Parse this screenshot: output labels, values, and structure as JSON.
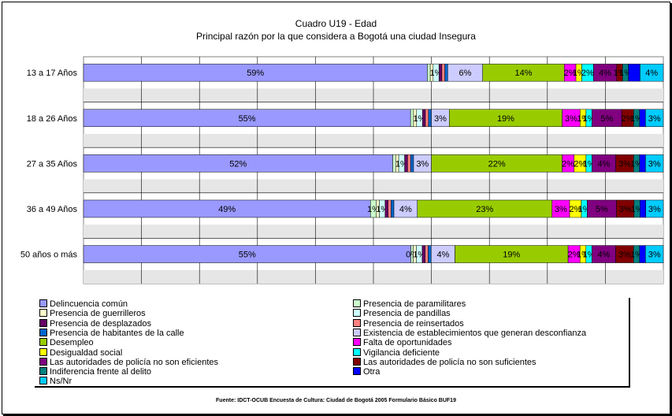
{
  "chart_data": {
    "type": "bar",
    "orientation": "horizontal",
    "stacked": "percent",
    "title": "Cuadro U19 - Edad",
    "subtitle": "Principal razón por la que considera a Bogotá una ciudad Insegura",
    "categories": [
      "13 a 17 Años",
      "18 a 26 Años",
      "27 a 35 Años",
      "36 a 49 Años",
      "50 años o más"
    ],
    "series": [
      {
        "name": "Delincuencia común",
        "color": "#9999ff",
        "values": [
          59,
          55,
          52,
          49,
          55
        ],
        "labels": [
          "59%",
          "55%",
          "52%",
          "49%",
          "55%"
        ]
      },
      {
        "name": "Presencia de paramilitares",
        "color": "#ccffcc",
        "values": [
          0.5,
          0.5,
          0.5,
          1,
          0.4
        ],
        "labels": [
          "",
          "",
          "",
          "1%",
          "0%"
        ]
      },
      {
        "name": "Presencia de guerrilleros",
        "color": "#ffffcc",
        "values": [
          0.5,
          0.5,
          0.5,
          0.5,
          0.5
        ],
        "labels": [
          "",
          "",
          "",
          "",
          ""
        ]
      },
      {
        "name": "Presencia de pandillas",
        "color": "#ccffff",
        "values": [
          1,
          1,
          1,
          1,
          1
        ],
        "labels": [
          "1%",
          "1%",
          "1%",
          "1%",
          "1%"
        ]
      },
      {
        "name": "Presencia de desplazados",
        "color": "#660066",
        "values": [
          0.5,
          0.5,
          0.5,
          0.5,
          0.5
        ],
        "labels": [
          "",
          "",
          "",
          "",
          ""
        ]
      },
      {
        "name": "Presencia de reinsertados",
        "color": "#ff8080",
        "values": [
          0.5,
          0.5,
          0.5,
          0.5,
          0.5
        ],
        "labels": [
          "",
          "",
          "",
          "",
          ""
        ]
      },
      {
        "name": "Presencia de habitantes de la calle",
        "color": "#0066cc",
        "values": [
          0.5,
          0.5,
          0.5,
          0.5,
          0.5
        ],
        "labels": [
          "",
          "",
          "",
          "",
          ""
        ]
      },
      {
        "name": "Existencia de establecimientos que generan desconfianza",
        "color": "#ccccff",
        "values": [
          6,
          3,
          3,
          4,
          4
        ],
        "labels": [
          "6%",
          "3%",
          "3%",
          "4%",
          "4%"
        ]
      },
      {
        "name": "Desempleo",
        "color": "#99cc00",
        "values": [
          14,
          19,
          22,
          23,
          19
        ],
        "labels": [
          "14%",
          "19%",
          "22%",
          "23%",
          "19%"
        ]
      },
      {
        "name": "Falta de oportunidades",
        "color": "#ff00ff",
        "values": [
          2,
          3,
          2,
          3,
          2
        ],
        "labels": [
          "2%",
          "3%",
          "2%",
          "3%",
          "2%"
        ]
      },
      {
        "name": "Desigualdad social",
        "color": "#ffff00",
        "values": [
          1,
          1,
          2,
          2,
          1
        ],
        "labels": [
          "1%",
          "1%",
          "2%",
          "2%",
          "1%"
        ]
      },
      {
        "name": "Vigilancia deficiente",
        "color": "#00ffff",
        "values": [
          2,
          1,
          1,
          1,
          1
        ],
        "labels": [
          "2%",
          "1%",
          "1%",
          "1%",
          "1%"
        ]
      },
      {
        "name": "Las autoridades de policía no son eficientes",
        "color": "#800080",
        "values": [
          4,
          5,
          4,
          5,
          4
        ],
        "labels": [
          "4%",
          "5%",
          "4%",
          "5%",
          "4%"
        ]
      },
      {
        "name": "Las autoridades de policía no son suficientes",
        "color": "#800000",
        "values": [
          1,
          2,
          3,
          3,
          3
        ],
        "labels": [
          "1%",
          "2%",
          "3%",
          "3%",
          "3%"
        ]
      },
      {
        "name": "Indiferencia frente al delito",
        "color": "#008080",
        "values": [
          1,
          1,
          1,
          1,
          1
        ],
        "labels": [
          "1%",
          "1%",
          "1%",
          "1%",
          "1%"
        ]
      },
      {
        "name": "Otra",
        "color": "#0000ff",
        "values": [
          2,
          1,
          1,
          1,
          1
        ],
        "labels": [
          "",
          "",
          "",
          "",
          ""
        ]
      },
      {
        "name": "Ns/Nr",
        "color": "#00ccff",
        "values": [
          4,
          3,
          3,
          3,
          3
        ],
        "labels": [
          "4%",
          "3%",
          "3%",
          "3%",
          "3%"
        ]
      }
    ],
    "xlim": [
      0,
      100
    ],
    "grid": true,
    "legend_position": "bottom"
  },
  "source": "Fuente: IDCT-OCUB Encuesta de Cultura: Ciudad de Bogotá 2005 Formulario Básico BUF19"
}
